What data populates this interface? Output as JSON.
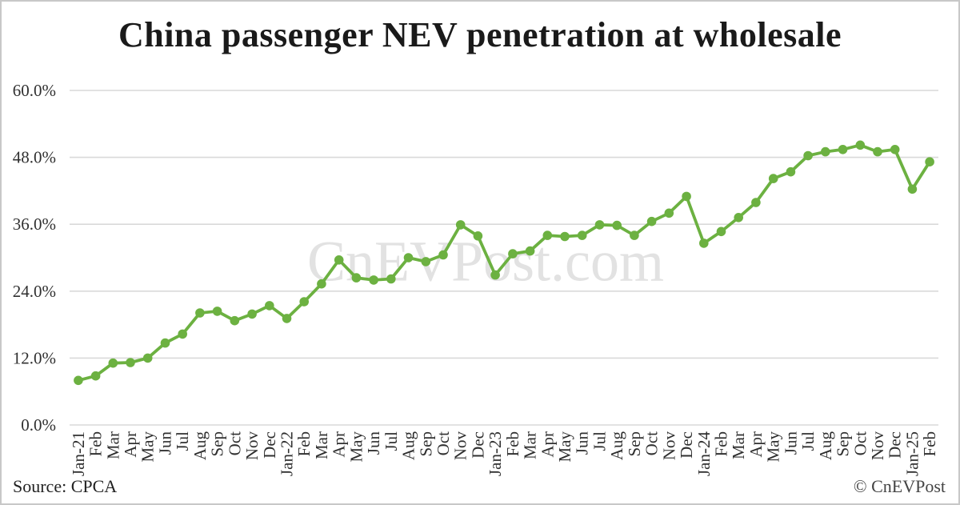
{
  "page": {
    "title": "China passenger NEV penetration at wholesale"
  },
  "watermark": {
    "text": "CnEVPost.com"
  },
  "footer": {
    "source": "Source: CPCA",
    "copyright": "© CnEVPost"
  },
  "colors": {
    "line": "#6cb141",
    "marker": "#6cb141",
    "grid": "#d9d9d9",
    "title_text": "#1a1a1a",
    "axis_text": "#303030",
    "watermark_text": "#e2e2e2",
    "border": "#c8c8c8"
  },
  "chart_data": {
    "type": "line",
    "title": "China passenger NEV penetration at wholesale",
    "xlabel": "",
    "ylabel": "",
    "ylim": [
      0,
      60
    ],
    "y_ticks": [
      "0.0%",
      "12.0%",
      "24.0%",
      "36.0%",
      "48.0%",
      "60.0%"
    ],
    "y_tick_values": [
      0,
      12,
      24,
      36,
      48,
      60
    ],
    "grid": true,
    "legend_position": "none",
    "marker": "circle",
    "categories": [
      "Jan-21",
      "Feb",
      "Mar",
      "Apr",
      "May",
      "Jun",
      "Jul",
      "Aug",
      "Sep",
      "Oct",
      "Nov",
      "Dec",
      "Jan-22",
      "Feb",
      "Mar",
      "Apr",
      "May",
      "Jun",
      "Jul",
      "Aug",
      "Sep",
      "Oct",
      "Nov",
      "Dec",
      "Jan-23",
      "Feb",
      "Mar",
      "Apr",
      "May",
      "Jun",
      "Jul",
      "Aug",
      "Sep",
      "Oct",
      "Nov",
      "Dec",
      "Jan-24",
      "Feb",
      "Mar",
      "Apr",
      "May",
      "Jun",
      "Jul",
      "Aug",
      "Sep",
      "Oct",
      "Nov",
      "Dec",
      "Jan-25",
      "Feb"
    ],
    "values": [
      8.0,
      8.8,
      11.1,
      11.2,
      12.0,
      14.7,
      16.3,
      20.1,
      20.4,
      18.7,
      19.9,
      21.4,
      19.1,
      22.1,
      25.3,
      29.6,
      26.4,
      26.0,
      26.2,
      30.0,
      29.3,
      30.5,
      35.9,
      33.9,
      26.9,
      30.7,
      31.2,
      34.0,
      33.8,
      34.0,
      35.9,
      35.8,
      34.0,
      36.5,
      38.0,
      41.0,
      32.6,
      34.7,
      37.2,
      39.9,
      44.2,
      45.4,
      48.3,
      49.0,
      49.4,
      50.2,
      49.0,
      49.4,
      42.3,
      47.2
    ]
  }
}
